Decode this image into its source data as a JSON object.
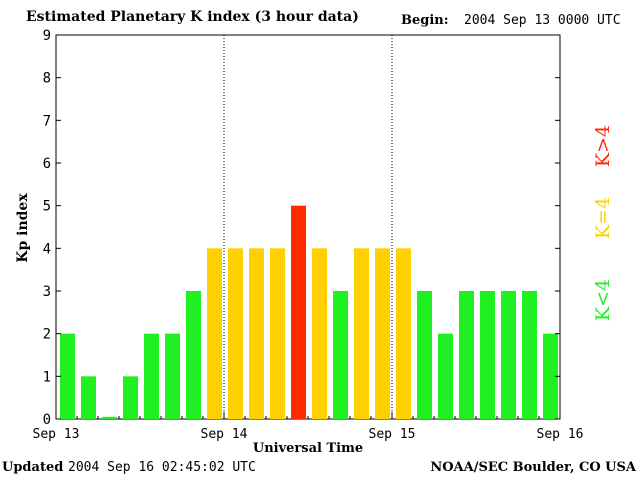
{
  "header": {
    "title": "Estimated Planetary K index (3 hour data)",
    "begin_label": "Begin:",
    "begin_value": "2004 Sep 13 0000 UTC"
  },
  "footer": {
    "updated_label": "Updated",
    "updated_value": "2004 Sep 16 02:45:02 UTC",
    "credit": "NOAA/SEC Boulder, CO USA"
  },
  "legend": [
    {
      "label": "K<4",
      "color": "#20f020"
    },
    {
      "label": "K=4",
      "color": "#ffd000"
    },
    {
      "label": "K>4",
      "color": "#ff2a00"
    }
  ],
  "chart_data": {
    "type": "bar",
    "title": "Estimated Planetary K index (3 hour data)",
    "xlabel": "Universal Time",
    "ylabel": "Kp index",
    "ylim": [
      0,
      9
    ],
    "yticks": [
      0,
      1,
      2,
      3,
      4,
      5,
      6,
      7,
      8,
      9
    ],
    "xtick_labels": [
      "Sep 13",
      "Sep 14",
      "Sep 15",
      "Sep 16"
    ],
    "grid": "vertical dotted lines at day boundaries",
    "colors": {
      "below4": "#20f020",
      "equal4": "#ffd000",
      "above4": "#ff2a00"
    },
    "categories": [
      "Sep 13 00-03",
      "Sep 13 03-06",
      "Sep 13 06-09",
      "Sep 13 09-12",
      "Sep 13 12-15",
      "Sep 13 15-18",
      "Sep 13 18-21",
      "Sep 13 21-24",
      "Sep 14 00-03",
      "Sep 14 03-06",
      "Sep 14 06-09",
      "Sep 14 09-12",
      "Sep 14 12-15",
      "Sep 14 15-18",
      "Sep 14 18-21",
      "Sep 14 21-24",
      "Sep 15 00-03",
      "Sep 15 03-06",
      "Sep 15 06-09",
      "Sep 15 09-12",
      "Sep 15 12-15",
      "Sep 15 15-18",
      "Sep 15 18-21",
      "Sep 15 21-24"
    ],
    "values": [
      2,
      1,
      0.05,
      1,
      2,
      2,
      3,
      4,
      4,
      4,
      4,
      5,
      4,
      3,
      4,
      4,
      4,
      3,
      2,
      3,
      3,
      3,
      3,
      2
    ]
  }
}
